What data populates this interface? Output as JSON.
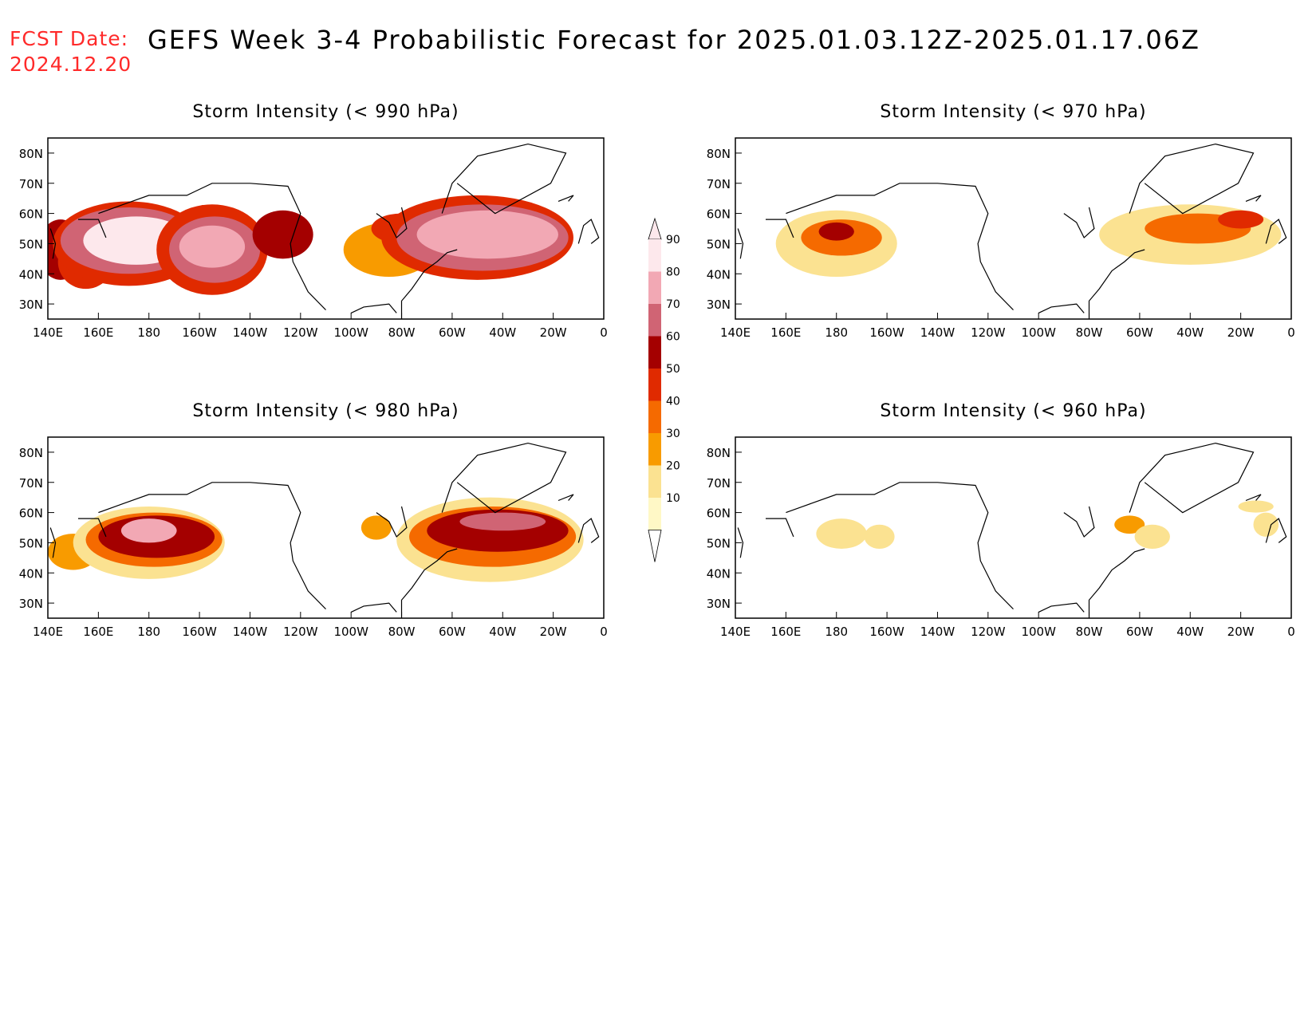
{
  "header": {
    "fcst_label": "FCST Date:",
    "fcst_date": "2024.12.20",
    "title": "GEFS Week 3-4 Probabilistic Forecast for 2025.01.03.12Z-2025.01.17.06Z"
  },
  "axes": {
    "x_ticks": [
      "140E",
      "160E",
      "180",
      "160W",
      "140W",
      "120W",
      "100W",
      "80W",
      "60W",
      "40W",
      "20W",
      "0"
    ],
    "y_ticks": [
      "80N",
      "70N",
      "60N",
      "50N",
      "40N",
      "30N"
    ]
  },
  "colorbar": {
    "labels": [
      "90",
      "80",
      "70",
      "60",
      "50",
      "40",
      "30",
      "20",
      "10"
    ],
    "colors": [
      "#fde8ec",
      "#f2a8b4",
      "#d06474",
      "#a40000",
      "#e02a00",
      "#f56a00",
      "#f89b00",
      "#fbe291",
      "#fff8c6"
    ]
  },
  "panels": [
    {
      "title": "Storm Intensity (< 990 hPa)",
      "threshold_hPa": 990
    },
    {
      "title": "Storm Intensity (< 970 hPa)",
      "threshold_hPa": 970
    },
    {
      "title": "Storm Intensity (< 980 hPa)",
      "threshold_hPa": 980
    },
    {
      "title": "Storm Intensity (< 960 hPa)",
      "threshold_hPa": 960
    }
  ],
  "map": {
    "lon_range": [
      140,
      360
    ],
    "lat_range": [
      25,
      85
    ]
  },
  "probability_fields": {
    "990": [
      {
        "lon": 145,
        "lat": 48,
        "rx": 9,
        "ry": 10,
        "level": 5
      },
      {
        "lon": 155,
        "lat": 44,
        "rx": 11,
        "ry": 9,
        "level": 4
      },
      {
        "lon": 172,
        "lat": 50,
        "rx": 30,
        "ry": 14,
        "level": 4
      },
      {
        "lon": 172,
        "lat": 51,
        "rx": 27,
        "ry": 11,
        "level": 6
      },
      {
        "lon": 175,
        "lat": 51,
        "rx": 21,
        "ry": 8,
        "level": 8
      },
      {
        "lon": 205,
        "lat": 48,
        "rx": 22,
        "ry": 15,
        "level": 4
      },
      {
        "lon": 206,
        "lat": 48,
        "rx": 18,
        "ry": 11,
        "level": 6
      },
      {
        "lon": 205,
        "lat": 49,
        "rx": 13,
        "ry": 7,
        "level": 7
      },
      {
        "lon": 233,
        "lat": 53,
        "rx": 12,
        "ry": 8,
        "level": 5
      },
      {
        "lon": 275,
        "lat": 48,
        "rx": 18,
        "ry": 9,
        "level": 2
      },
      {
        "lon": 280,
        "lat": 55,
        "rx": 12,
        "ry": 5,
        "level": 4
      },
      {
        "lon": 310,
        "lat": 52,
        "rx": 38,
        "ry": 14,
        "level": 4
      },
      {
        "lon": 312,
        "lat": 52,
        "rx": 34,
        "ry": 11,
        "level": 6
      },
      {
        "lon": 314,
        "lat": 53,
        "rx": 28,
        "ry": 8,
        "level": 7
      }
    ],
    "980": [
      {
        "lon": 150,
        "lat": 47,
        "rx": 10,
        "ry": 6,
        "level": 2
      },
      {
        "lon": 180,
        "lat": 50,
        "rx": 30,
        "ry": 12,
        "level": 1
      },
      {
        "lon": 182,
        "lat": 51,
        "rx": 27,
        "ry": 9,
        "level": 3
      },
      {
        "lon": 183,
        "lat": 52,
        "rx": 23,
        "ry": 7,
        "level": 5
      },
      {
        "lon": 180,
        "lat": 54,
        "rx": 11,
        "ry": 4,
        "level": 7
      },
      {
        "lon": 270,
        "lat": 55,
        "rx": 6,
        "ry": 4,
        "level": 2
      },
      {
        "lon": 315,
        "lat": 51,
        "rx": 37,
        "ry": 14,
        "level": 1
      },
      {
        "lon": 316,
        "lat": 52,
        "rx": 33,
        "ry": 10,
        "level": 3
      },
      {
        "lon": 318,
        "lat": 54,
        "rx": 28,
        "ry": 7,
        "level": 5
      },
      {
        "lon": 320,
        "lat": 57,
        "rx": 17,
        "ry": 3,
        "level": 6
      }
    ],
    "970": [
      {
        "lon": 180,
        "lat": 50,
        "rx": 24,
        "ry": 11,
        "level": 1
      },
      {
        "lon": 182,
        "lat": 52,
        "rx": 16,
        "ry": 6,
        "level": 3
      },
      {
        "lon": 180,
        "lat": 54,
        "rx": 7,
        "ry": 3,
        "level": 5
      },
      {
        "lon": 320,
        "lat": 53,
        "rx": 36,
        "ry": 10,
        "level": 1
      },
      {
        "lon": 323,
        "lat": 55,
        "rx": 21,
        "ry": 5,
        "level": 3
      },
      {
        "lon": 340,
        "lat": 58,
        "rx": 9,
        "ry": 3,
        "level": 4
      }
    ],
    "960": [
      {
        "lon": 182,
        "lat": 53,
        "rx": 10,
        "ry": 5,
        "level": 1
      },
      {
        "lon": 197,
        "lat": 52,
        "rx": 6,
        "ry": 4,
        "level": 1
      },
      {
        "lon": 296,
        "lat": 56,
        "rx": 6,
        "ry": 3,
        "level": 2
      },
      {
        "lon": 305,
        "lat": 52,
        "rx": 7,
        "ry": 4,
        "level": 1
      },
      {
        "lon": 346,
        "lat": 62,
        "rx": 7,
        "ry": 2,
        "level": 1
      },
      {
        "lon": 350,
        "lat": 56,
        "rx": 5,
        "ry": 4,
        "level": 1
      }
    ]
  }
}
